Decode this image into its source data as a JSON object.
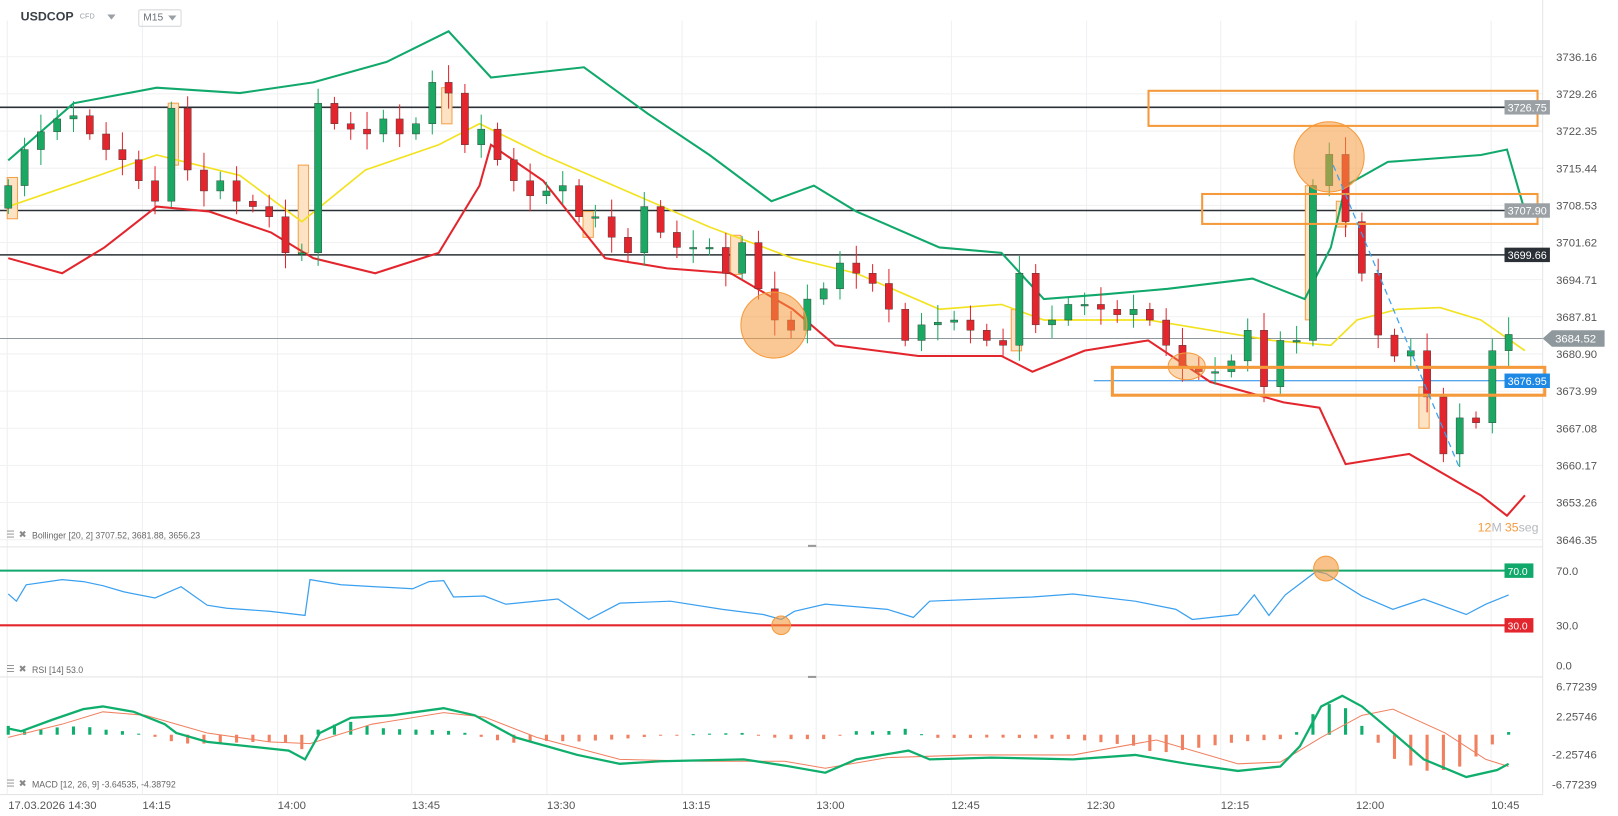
{
  "header": {
    "symbol": "USDCOP",
    "instrument_type": "CFD",
    "timeframe": "M15"
  },
  "price_axis": [
    "3736.16",
    "3729.26",
    "3722.35",
    "3715.44",
    "3708.53",
    "3701.62",
    "3694.71",
    "3687.81",
    "3680.90",
    "3673.99",
    "3667.08",
    "3660.17",
    "3653.26",
    "3646.35"
  ],
  "price_tags": {
    "level1": "3726.75",
    "level2": "3707.90",
    "level3": "3699.66",
    "current": "3684.52",
    "blue_level": "3676.95"
  },
  "timer": {
    "minutes": "12",
    "minutes_unit": "M",
    "seconds": "35",
    "seconds_unit": "seg"
  },
  "legends": {
    "bollinger": "Bollinger [20, 2] 3707.52, 3681.88, 3656.23",
    "rsi": "RSI [14] 53.0",
    "macd": "MACD [12, 26, 9] -3.64535, -4.38792"
  },
  "rsi_axis": {
    "upper": "70.0",
    "lower": "30.0",
    "zero": "0.0"
  },
  "macd_axis": [
    "6.77239",
    "2.25746",
    "-2.25746",
    "-6.77239"
  ],
  "time_axis": [
    "17.03.2026 14:30",
    "14:15",
    "14:00",
    "13:45",
    "13:30",
    "13:15",
    "13:00",
    "12:45",
    "12:30",
    "12:15",
    "12:00",
    "10:45"
  ],
  "colors": {
    "bull": "#1aa862",
    "bear": "#e3262d",
    "bb_upper": "#10a86b",
    "bb_middle": "#f3e21f",
    "bb_lower": "#e3262d",
    "rsi": "#3aa0f0",
    "macd": "#0fae6c",
    "signal": "#f08060",
    "annotation": "#f59a3c",
    "blue_level": "#1e88e5"
  },
  "chart_data": {
    "type": "candlestick",
    "price_range": [
      3646.35,
      3736.16
    ],
    "open_first": 3708.0,
    "closes": [
      3712.2,
      3718.9,
      3722.2,
      3724.6,
      3725.2,
      3721.8,
      3718.9,
      3717.0,
      3713.1,
      3709.3,
      3726.6,
      3715.1,
      3711.2,
      3713.1,
      3709.3,
      3708.3,
      3706.4,
      3699.7,
      3699.7,
      3727.5,
      3723.7,
      3722.7,
      3721.8,
      3724.6,
      3721.8,
      3723.7,
      3731.4,
      3729.4,
      3719.8,
      3722.7,
      3717.0,
      3713.1,
      3710.3,
      3711.2,
      3712.2,
      3706.4,
      3706.4,
      3702.6,
      3699.7,
      3708.3,
      3703.5,
      3700.7,
      3700.7,
      3700.7,
      3695.9,
      3701.6,
      3693.0,
      3687.2,
      3685.3,
      3691.1,
      3693.0,
      3697.8,
      3695.9,
      3694.0,
      3689.2,
      3683.4,
      3686.3,
      3686.8,
      3687.2,
      3685.3,
      3683.4,
      3682.5,
      3695.9,
      3686.3,
      3687.2,
      3690.1,
      3690.1,
      3689.2,
      3688.2,
      3689.2,
      3687.2,
      3682.5,
      3678.6,
      3677.6,
      3677.6,
      3679.6,
      3685.3,
      3674.8,
      3683.4,
      3683.4,
      3712.2,
      3718.0,
      3705.5,
      3695.9,
      3684.4,
      3680.5,
      3681.5,
      3672.9,
      3662.3,
      3669.0,
      3668.1,
      3681.5,
      3684.52
    ],
    "bollinger": {
      "upper": [
        [
          0,
          3716.9
        ],
        [
          4,
          3727.5
        ],
        [
          9.1,
          3730.4
        ],
        [
          14.2,
          3729.4
        ],
        [
          18.7,
          3731.4
        ],
        [
          23.2,
          3735.2
        ],
        [
          27,
          3740.9
        ],
        [
          29.6,
          3732.3
        ],
        [
          35.3,
          3734.2
        ],
        [
          39.2,
          3725.6
        ],
        [
          43,
          3717.9
        ],
        [
          46.8,
          3709.3
        ],
        [
          49.4,
          3712.2
        ],
        [
          52,
          3707.4
        ],
        [
          57.1,
          3700.7
        ],
        [
          60.9,
          3699.7
        ],
        [
          63.5,
          3691.1
        ],
        [
          67.3,
          3692.0
        ],
        [
          71.1,
          3693.0
        ],
        [
          76.3,
          3694.9
        ],
        [
          79.5,
          3691.1
        ],
        [
          81.1,
          3700.7
        ],
        [
          82,
          3712.2
        ],
        [
          84.6,
          3716.6
        ],
        [
          90.3,
          3717.9
        ],
        [
          91.9,
          3718.9
        ],
        [
          93,
          3707.4
        ]
      ],
      "middle": [
        [
          0,
          3708.3
        ],
        [
          4.6,
          3713.1
        ],
        [
          9.1,
          3717.9
        ],
        [
          14.2,
          3714.1
        ],
        [
          18,
          3705.5
        ],
        [
          21.9,
          3715.1
        ],
        [
          26.4,
          3719.8
        ],
        [
          28.9,
          3723.7
        ],
        [
          32.8,
          3717.9
        ],
        [
          37.9,
          3711.2
        ],
        [
          43,
          3704.5
        ],
        [
          48.1,
          3698.7
        ],
        [
          52,
          3695.9
        ],
        [
          57.1,
          3689.2
        ],
        [
          60.9,
          3690.1
        ],
        [
          63.5,
          3687.2
        ],
        [
          69.9,
          3687.2
        ],
        [
          73.7,
          3685.3
        ],
        [
          77.5,
          3683.4
        ],
        [
          81.1,
          3682.5
        ],
        [
          82.7,
          3687.2
        ],
        [
          85.2,
          3689.2
        ],
        [
          87.8,
          3689.5
        ],
        [
          90.3,
          3687.2
        ],
        [
          93,
          3681.5
        ]
      ],
      "lower": [
        [
          0,
          3698.7
        ],
        [
          3.3,
          3695.9
        ],
        [
          5.9,
          3700.7
        ],
        [
          9.1,
          3708.3
        ],
        [
          12.3,
          3707.4
        ],
        [
          16.1,
          3703.5
        ],
        [
          18.7,
          3698.7
        ],
        [
          22.5,
          3695.9
        ],
        [
          26.4,
          3699.7
        ],
        [
          28.9,
          3712.2
        ],
        [
          29.6,
          3719.8
        ],
        [
          32.8,
          3713.1
        ],
        [
          36.6,
          3698.7
        ],
        [
          40.4,
          3696.8
        ],
        [
          44.3,
          3695.9
        ],
        [
          48.1,
          3689.2
        ],
        [
          50.7,
          3682.5
        ],
        [
          55.8,
          3680.5
        ],
        [
          60.9,
          3680.5
        ],
        [
          62.8,
          3677.6
        ],
        [
          66,
          3681.5
        ],
        [
          69.9,
          3683.4
        ],
        [
          73.7,
          3675.7
        ],
        [
          78.2,
          3671.9
        ],
        [
          80.4,
          3670.9
        ],
        [
          82,
          3660.4
        ],
        [
          85.9,
          3662.3
        ],
        [
          90.3,
          3654.6
        ],
        [
          91.9,
          3650.8
        ],
        [
          93,
          3654.6
        ]
      ]
    },
    "horizontal_levels": [
      3726.75,
      3707.9,
      3699.66,
      3684.52,
      3676.95
    ],
    "rsi": {
      "range": [
        0,
        100
      ],
      "overbought": 70,
      "oversold": 30,
      "values": [
        [
          0,
          52.8
        ],
        [
          0.5,
          47.5
        ],
        [
          1.1,
          59.6
        ],
        [
          3.3,
          63.4
        ],
        [
          4.6,
          61.9
        ],
        [
          5.8,
          58.9
        ],
        [
          7.1,
          54.3
        ],
        [
          9,
          49.8
        ],
        [
          10.6,
          58.1
        ],
        [
          12.2,
          44.5
        ],
        [
          13.4,
          42.3
        ],
        [
          16,
          40
        ],
        [
          18.2,
          37
        ],
        [
          18.5,
          63.4
        ],
        [
          20.4,
          59.6
        ],
        [
          24.8,
          56.6
        ],
        [
          25.8,
          61.9
        ],
        [
          26.7,
          62.6
        ],
        [
          27.3,
          50.6
        ],
        [
          29.2,
          51.3
        ],
        [
          30.5,
          45.3
        ],
        [
          33.7,
          49.1
        ],
        [
          35.6,
          34
        ],
        [
          37.5,
          46
        ],
        [
          40.6,
          47.5
        ],
        [
          43.8,
          41.5
        ],
        [
          46.3,
          37.7
        ],
        [
          47.4,
          34
        ],
        [
          48.2,
          40
        ],
        [
          50.1,
          45.3
        ],
        [
          53.9,
          41.5
        ],
        [
          55.5,
          35.5
        ],
        [
          56.5,
          47.5
        ],
        [
          62.8,
          50.6
        ],
        [
          65.3,
          52.8
        ],
        [
          69.1,
          47.5
        ],
        [
          71.6,
          41.5
        ],
        [
          72.6,
          34
        ],
        [
          75.4,
          37.7
        ],
        [
          76.4,
          52.1
        ],
        [
          77.3,
          37
        ],
        [
          78.3,
          52.1
        ],
        [
          80.2,
          69.4
        ],
        [
          80.8,
          67.9
        ],
        [
          83,
          51.3
        ],
        [
          84.9,
          41.5
        ],
        [
          86.8,
          49.1
        ],
        [
          89.4,
          37.7
        ],
        [
          90.6,
          45.3
        ],
        [
          92,
          52.1
        ]
      ]
    },
    "macd": {
      "range": [
        -6.77239,
        6.77239
      ],
      "macd_line": [
        [
          0,
          0.85
        ],
        [
          0.8,
          0.49
        ],
        [
          2.7,
          2.07
        ],
        [
          4.6,
          3.54
        ],
        [
          5.8,
          3.9
        ],
        [
          7.7,
          3.17
        ],
        [
          9.6,
          1.46
        ],
        [
          10.3,
          0.24
        ],
        [
          12.2,
          -0.98
        ],
        [
          17.2,
          -2.2
        ],
        [
          18.2,
          -3.41
        ],
        [
          19.1,
          0.24
        ],
        [
          21,
          2.32
        ],
        [
          23.5,
          2.68
        ],
        [
          26.7,
          3.66
        ],
        [
          28.6,
          2.68
        ],
        [
          31.1,
          -0.37
        ],
        [
          34.9,
          -2.8
        ],
        [
          37.5,
          -4.02
        ],
        [
          40,
          -3.66
        ],
        [
          45.1,
          -3.41
        ],
        [
          47.6,
          -4.27
        ],
        [
          50.1,
          -5.24
        ],
        [
          52,
          -3.41
        ],
        [
          55.2,
          -2.2
        ],
        [
          56.5,
          -3.41
        ],
        [
          60.3,
          -3.17
        ],
        [
          65.3,
          -3.41
        ],
        [
          69.1,
          -2.8
        ],
        [
          72.3,
          -4.02
        ],
        [
          75.4,
          -5
        ],
        [
          78,
          -4.39
        ],
        [
          79.2,
          -1.59
        ],
        [
          80.5,
          3.9
        ],
        [
          81.8,
          5.37
        ],
        [
          83,
          3.9
        ],
        [
          84.3,
          1.46
        ],
        [
          86.8,
          -3.41
        ],
        [
          89.4,
          -5.85
        ],
        [
          91.3,
          -4.88
        ],
        [
          92,
          -4.02
        ]
      ],
      "signal_line": [
        [
          0,
          -0.37
        ],
        [
          3.3,
          1.46
        ],
        [
          5.8,
          3.17
        ],
        [
          8.4,
          2.68
        ],
        [
          12.2,
          0.24
        ],
        [
          16,
          -0.98
        ],
        [
          18.5,
          -1.22
        ],
        [
          22.3,
          1.46
        ],
        [
          26.7,
          3.05
        ],
        [
          29.2,
          2.44
        ],
        [
          32.4,
          -0.37
        ],
        [
          37.5,
          -3.41
        ],
        [
          42.5,
          -3.66
        ],
        [
          47.6,
          -3.66
        ],
        [
          50.1,
          -4.63
        ],
        [
          53.9,
          -3.17
        ],
        [
          59,
          -2.8
        ],
        [
          65.3,
          -2.8
        ],
        [
          70.4,
          -0.73
        ],
        [
          75.4,
          -4.02
        ],
        [
          78,
          -3.78
        ],
        [
          80.5,
          -0.37
        ],
        [
          83,
          2.68
        ],
        [
          84.9,
          3.54
        ],
        [
          88.1,
          0.24
        ],
        [
          90.6,
          -3.41
        ],
        [
          92,
          -4.39
        ]
      ]
    }
  }
}
